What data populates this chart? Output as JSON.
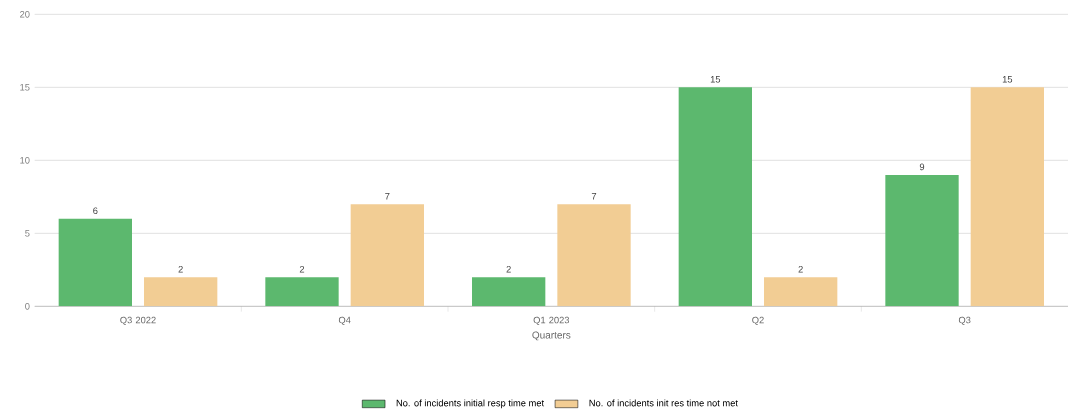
{
  "chart_data": {
    "type": "bar",
    "xlabel": "Quarters",
    "categories": [
      "Q3 2022",
      "Q4",
      "Q1 2023",
      "Q2",
      "Q3"
    ],
    "series": [
      {
        "name": "No. of incidents initial resp time met",
        "color": "#5cb86e",
        "values": [
          6,
          2,
          2,
          15,
          9
        ]
      },
      {
        "name": "No. of incidents init res time not met",
        "color": "#f2cd94",
        "values": [
          2,
          7,
          7,
          2,
          15
        ]
      }
    ],
    "ylim": [
      0,
      20
    ],
    "yticks": [
      0,
      5,
      10,
      15,
      20
    ],
    "grid": "y",
    "legend": "bottom",
    "data_labels": true
  }
}
